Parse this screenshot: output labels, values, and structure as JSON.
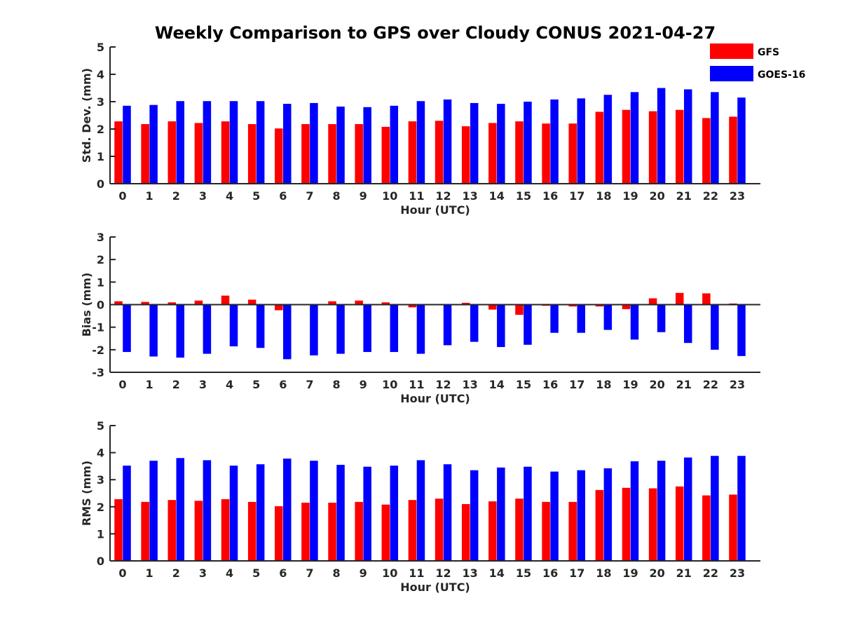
{
  "title": "Weekly Comparison to GPS over Cloudy CONUS 2021-04-27",
  "legend": {
    "position": "top-right",
    "items": [
      {
        "name": "GFS",
        "color": "#ff0000"
      },
      {
        "name": "GOES-16",
        "color": "#0000ff"
      }
    ]
  },
  "chart_data": [
    {
      "type": "bar",
      "xlabel": "Hour (UTC)",
      "ylabel": "Std. Dev. (mm)",
      "ylim": [
        0,
        5
      ],
      "yticks": [
        0,
        1,
        2,
        3,
        4,
        5
      ],
      "grid": false,
      "categories": [
        "0",
        "1",
        "2",
        "3",
        "4",
        "5",
        "6",
        "7",
        "8",
        "9",
        "10",
        "11",
        "12",
        "13",
        "14",
        "15",
        "16",
        "17",
        "18",
        "19",
        "20",
        "21",
        "22",
        "23"
      ],
      "series": [
        {
          "name": "GFS",
          "color": "#ff0000",
          "values": [
            2.28,
            2.18,
            2.28,
            2.22,
            2.28,
            2.18,
            2.02,
            2.18,
            2.18,
            2.18,
            2.08,
            2.28,
            2.3,
            2.1,
            2.22,
            2.28,
            2.2,
            2.2,
            2.63,
            2.7,
            2.65,
            2.7,
            2.4,
            2.45
          ]
        },
        {
          "name": "GOES-16",
          "color": "#0000ff",
          "values": [
            2.85,
            2.88,
            3.02,
            3.02,
            3.02,
            3.02,
            2.92,
            2.95,
            2.82,
            2.8,
            2.85,
            3.02,
            3.08,
            2.95,
            2.92,
            3.0,
            3.08,
            3.12,
            3.25,
            3.35,
            3.5,
            3.45,
            3.35,
            3.15
          ]
        }
      ]
    },
    {
      "type": "bar",
      "xlabel": "Hour (UTC)",
      "ylabel": "Bias (mm)",
      "ylim": [
        -3,
        3
      ],
      "yticks": [
        -3,
        -2,
        -1,
        0,
        1,
        2,
        3
      ],
      "grid": false,
      "zero_line": true,
      "categories": [
        "0",
        "1",
        "2",
        "3",
        "4",
        "5",
        "6",
        "7",
        "8",
        "9",
        "10",
        "11",
        "12",
        "13",
        "14",
        "15",
        "16",
        "17",
        "18",
        "19",
        "20",
        "21",
        "22",
        "23"
      ],
      "series": [
        {
          "name": "GFS",
          "color": "#ff0000",
          "values": [
            0.15,
            0.12,
            0.1,
            0.18,
            0.4,
            0.22,
            -0.25,
            0.0,
            0.15,
            0.18,
            0.1,
            -0.12,
            0.0,
            0.08,
            -0.22,
            -0.45,
            -0.05,
            -0.08,
            -0.08,
            -0.2,
            0.28,
            0.52,
            0.5,
            0.05
          ]
        },
        {
          "name": "GOES-16",
          "color": "#0000ff",
          "values": [
            -2.1,
            -2.3,
            -2.35,
            -2.18,
            -1.85,
            -1.92,
            -2.42,
            -2.25,
            -2.18,
            -2.1,
            -2.1,
            -2.18,
            -1.8,
            -1.65,
            -1.88,
            -1.78,
            -1.25,
            -1.25,
            -1.12,
            -1.55,
            -1.22,
            -1.7,
            -2.0,
            -2.28
          ]
        }
      ]
    },
    {
      "type": "bar",
      "xlabel": "Hour (UTC)",
      "ylabel": "RMS (mm)",
      "ylim": [
        0,
        5
      ],
      "yticks": [
        0,
        1,
        2,
        3,
        4,
        5
      ],
      "grid": false,
      "categories": [
        "0",
        "1",
        "2",
        "3",
        "4",
        "5",
        "6",
        "7",
        "8",
        "9",
        "10",
        "11",
        "12",
        "13",
        "14",
        "15",
        "16",
        "17",
        "18",
        "19",
        "20",
        "21",
        "22",
        "23"
      ],
      "series": [
        {
          "name": "GFS",
          "color": "#ff0000",
          "values": [
            2.28,
            2.18,
            2.25,
            2.22,
            2.28,
            2.18,
            2.02,
            2.15,
            2.15,
            2.18,
            2.08,
            2.25,
            2.3,
            2.1,
            2.2,
            2.3,
            2.18,
            2.18,
            2.62,
            2.7,
            2.68,
            2.75,
            2.42,
            2.45
          ]
        },
        {
          "name": "GOES-16",
          "color": "#0000ff",
          "values": [
            3.52,
            3.7,
            3.8,
            3.72,
            3.52,
            3.57,
            3.78,
            3.7,
            3.55,
            3.48,
            3.52,
            3.72,
            3.57,
            3.35,
            3.45,
            3.48,
            3.3,
            3.35,
            3.42,
            3.68,
            3.7,
            3.82,
            3.88,
            3.88
          ]
        }
      ]
    }
  ]
}
